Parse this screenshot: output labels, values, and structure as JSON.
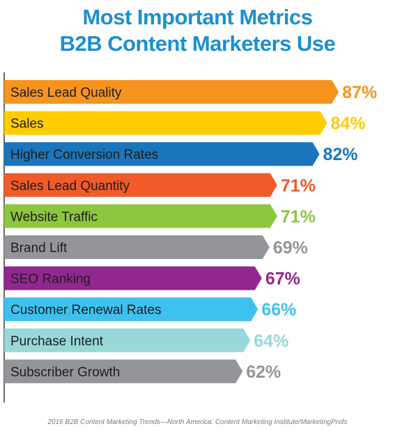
{
  "title_line1": "Most Important Metrics",
  "title_line2": "B2B Content Marketers Use",
  "source": "2016 B2B Content Marketing Trends—North America: Content Marketing Institute/MarketingProfs",
  "chart_data": {
    "type": "bar",
    "orientation": "horizontal",
    "title": "Most Important Metrics B2B Content Marketers Use",
    "xlim": [
      0,
      100
    ],
    "grid": false,
    "categories": [
      "Sales Lead Quality",
      "Sales",
      "Higher Conversion Rates",
      "Sales Lead Quantity",
      "Website Traffic",
      "Brand Lift",
      "SEO Ranking",
      "Customer Renewal Rates",
      "Purchase Intent",
      "Subscriber Growth"
    ],
    "values": [
      87,
      84,
      82,
      71,
      71,
      69,
      67,
      66,
      64,
      62
    ],
    "value_labels": [
      "87%",
      "84%",
      "82%",
      "71%",
      "71%",
      "69%",
      "67%",
      "66%",
      "64%",
      "62%"
    ],
    "colors": [
      "#f7941e",
      "#ffcc00",
      "#1a75bb",
      "#f15a29",
      "#8dc63f",
      "#939598",
      "#92278f",
      "#3fc1f0",
      "#98d8d9",
      "#939598"
    ],
    "label_colors": [
      "#f7941e",
      "#ffcc00",
      "#1a75bb",
      "#f15a29",
      "#8dc63f",
      "#939598",
      "#92278f",
      "#3fc1f0",
      "#98d8d9",
      "#939598"
    ]
  }
}
